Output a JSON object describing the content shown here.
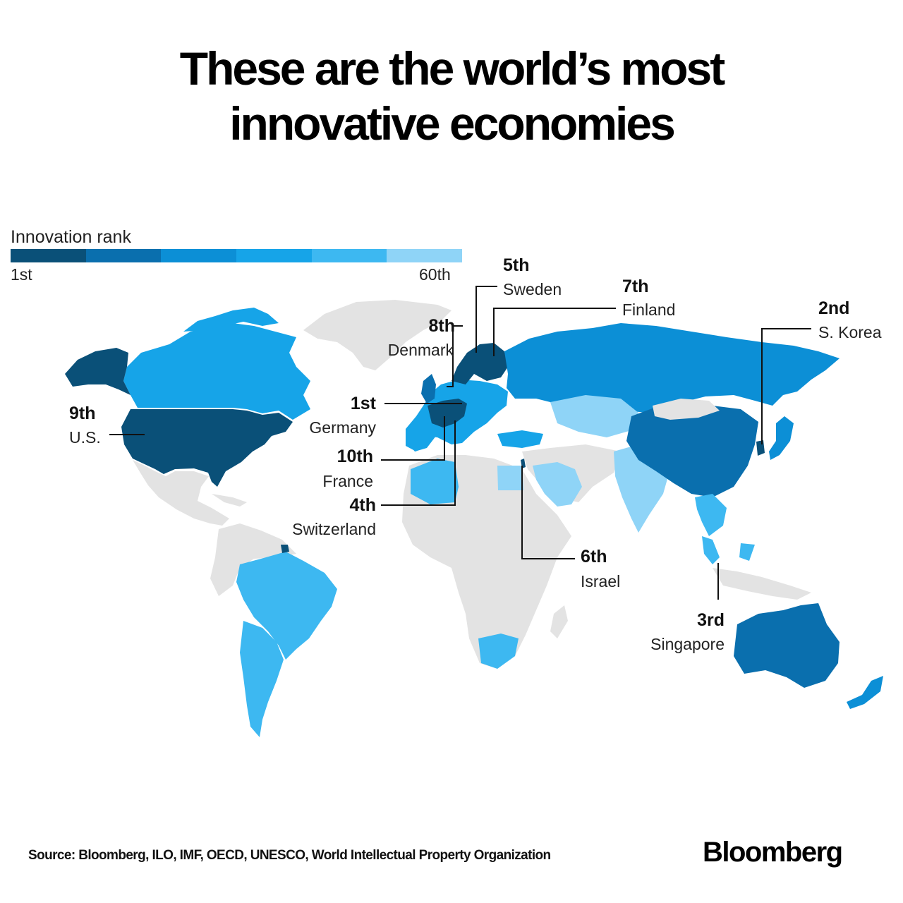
{
  "title_line1": "These are the world’s most",
  "title_line2": "innovative economies",
  "legend": {
    "title": "Innovation rank",
    "min_label": "1st",
    "max_label": "60th",
    "colors": [
      "#0a5078",
      "#0a6fae",
      "#0c8fd6",
      "#16a4e8",
      "#3db8f1",
      "#8fd4f7"
    ]
  },
  "land_color_unranked": "#e3e3e3",
  "callouts": [
    {
      "rank": "1st",
      "country": "Germany",
      "color": "#0a5078"
    },
    {
      "rank": "2nd",
      "country": "S. Korea",
      "color": "#0a5078"
    },
    {
      "rank": "3rd",
      "country": "Singapore",
      "color": "#0a5078"
    },
    {
      "rank": "4th",
      "country": "Switzerland",
      "color": "#0a5078"
    },
    {
      "rank": "5th",
      "country": "Sweden",
      "color": "#0a5078"
    },
    {
      "rank": "6th",
      "country": "Israel",
      "color": "#0a5078"
    },
    {
      "rank": "7th",
      "country": "Finland",
      "color": "#0a5078"
    },
    {
      "rank": "8th",
      "country": "Denmark",
      "color": "#0a5078"
    },
    {
      "rank": "9th",
      "country": "U.S.",
      "color": "#0a5078"
    },
    {
      "rank": "10th",
      "country": "France",
      "color": "#0a5078"
    }
  ],
  "source": "Source: Bloomberg, ILO, IMF, OECD, UNESCO, World Intellectual Property Organization",
  "brand": "Bloomberg"
}
